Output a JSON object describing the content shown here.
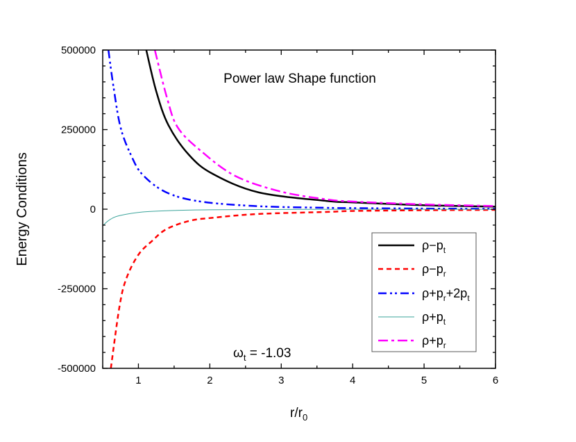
{
  "chart_data": {
    "type": "line",
    "title": "Power law Shape function",
    "annotation": {
      "symbol": "ω",
      "sub": "t",
      "text": " = -1.03"
    },
    "xlabel": {
      "main": "r/r",
      "sub": "0"
    },
    "ylabel": "Energy Conditions",
    "xlim": [
      0.5,
      6
    ],
    "ylim": [
      -500000,
      500000
    ],
    "xticks": [
      1,
      2,
      3,
      4,
      5,
      6
    ],
    "yticks": [
      -500000,
      -250000,
      0,
      250000,
      500000
    ],
    "grid": false,
    "legend_position": "bottom-right",
    "series": [
      {
        "name": "ρ−p",
        "sub": "t",
        "color": "#000000",
        "dash": "solid",
        "width": 2.5,
        "points": [
          [
            1.11,
            500000
          ],
          [
            1.25,
            370000
          ],
          [
            1.42,
            264000
          ],
          [
            1.71,
            170000
          ],
          [
            2.04,
            111000
          ],
          [
            2.68,
            53000
          ],
          [
            3.63,
            26000
          ],
          [
            4,
            21400
          ],
          [
            5,
            12400
          ],
          [
            6,
            7900
          ]
        ]
      },
      {
        "name": "ρ−p",
        "sub": "r",
        "color": "#ff0000",
        "dash": "dashed",
        "width": 2.5,
        "points": [
          [
            0.614,
            -500000
          ],
          [
            0.737,
            -303000
          ],
          [
            0.834,
            -216000
          ],
          [
            1.0,
            -143000
          ],
          [
            1.19,
            -100000
          ],
          [
            1.39,
            -63000
          ],
          [
            1.71,
            -37000
          ],
          [
            2.04,
            -27000
          ],
          [
            2.68,
            -15000
          ],
          [
            3.63,
            -8700
          ],
          [
            4,
            -5600
          ],
          [
            5,
            -3300
          ],
          [
            6,
            -2200
          ]
        ]
      },
      {
        "name": "ρ+p",
        "sub": "r",
        "name2": "+2p",
        "sub2": "t",
        "color": "#0000ff",
        "dash": "dashdotdot",
        "width": 2.5,
        "points": [
          [
            0.58,
            500000
          ],
          [
            0.65,
            386000
          ],
          [
            0.75,
            257000
          ],
          [
            0.9,
            168000
          ],
          [
            1.06,
            108000
          ],
          [
            1.39,
            53000
          ],
          [
            1.87,
            24000
          ],
          [
            2.68,
            9400
          ],
          [
            3.63,
            4400
          ],
          [
            4,
            3400
          ],
          [
            5,
            1900
          ],
          [
            6,
            1200
          ]
        ]
      },
      {
        "name": "ρ+p",
        "sub": "t",
        "color": "#3aa39a",
        "dash": "solid",
        "width": 1,
        "points": [
          [
            0.5,
            -52000
          ],
          [
            0.6,
            -33000
          ],
          [
            0.74,
            -20000
          ],
          [
            1.06,
            -8700
          ],
          [
            1.5,
            -4000
          ],
          [
            2,
            -2000
          ],
          [
            3,
            -800
          ],
          [
            4,
            -400
          ],
          [
            6,
            -150
          ]
        ]
      },
      {
        "name": "ρ+p",
        "sub": "r",
        "color": "#ff00ff",
        "dash": "dashdot",
        "width": 2.5,
        "points": [
          [
            1.23,
            500000
          ],
          [
            1.4,
            350000
          ],
          [
            1.55,
            257000
          ],
          [
            1.87,
            184000
          ],
          [
            2.36,
            104000
          ],
          [
            3.0,
            55000
          ],
          [
            3.63,
            31000
          ],
          [
            4,
            24000
          ],
          [
            5,
            15000
          ],
          [
            6,
            10000
          ]
        ]
      }
    ]
  }
}
